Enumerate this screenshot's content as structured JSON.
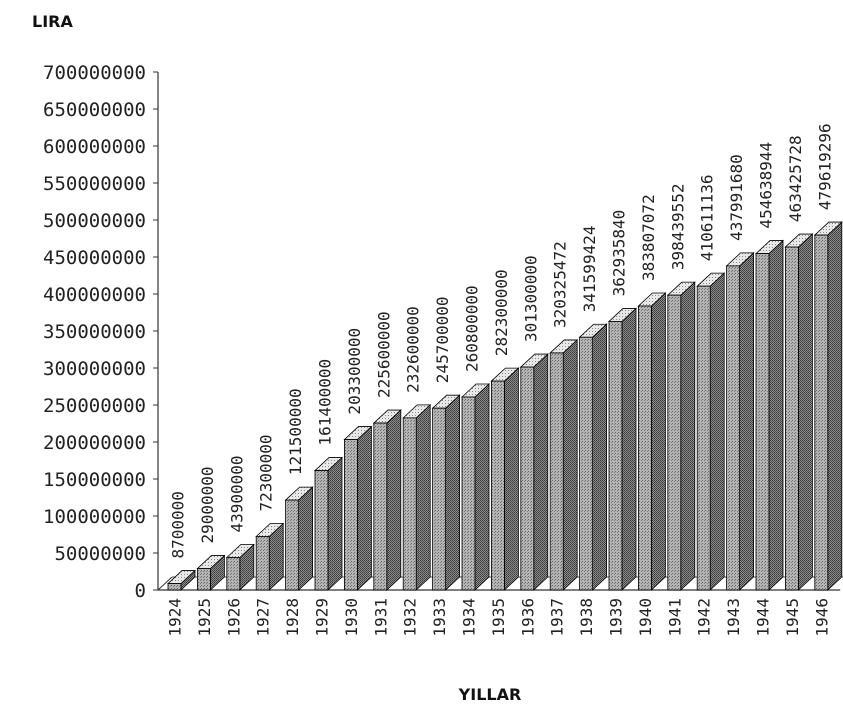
{
  "chart_data": {
    "type": "bar",
    "ylabel": "LIRA",
    "xlabel": "YILLAR",
    "ylim": [
      0,
      700000000
    ],
    "yticks": [
      "700000000",
      "650000000",
      "600000000",
      "550000000",
      "500000000",
      "450000000",
      "400000000",
      "350000000",
      "300000000",
      "250000000",
      "200000000",
      "150000000",
      "100000000",
      "50000000",
      "0"
    ],
    "categories": [
      "1924",
      "1925",
      "1926",
      "1927",
      "1928",
      "1929",
      "1930",
      "1931",
      "1932",
      "1933",
      "1934",
      "1935",
      "1936",
      "1937",
      "1938",
      "1939",
      "1940",
      "1941",
      "1942",
      "1943",
      "1944",
      "1945",
      "1946"
    ],
    "values": [
      8700000,
      29000000,
      43900000,
      72300000,
      121500000,
      161400000,
      203300000,
      225600000,
      232600000,
      245700000,
      260800000,
      282300000,
      301300000,
      320325472,
      341599424,
      362935840,
      383807072,
      398439552,
      410611136,
      437991680,
      454638944,
      463425728,
      479619296
    ],
    "data_labels": [
      "8700000",
      "29000000",
      "43900000",
      "72300000",
      "121500000",
      "161400000",
      "203300000",
      "225600000",
      "232600000",
      "245700000",
      "260800000",
      "282300000",
      "301300000",
      "320325472",
      "341599424",
      "362935840",
      "383807072",
      "398439552",
      "410611136",
      "437991680",
      "454638944",
      "463425728",
      "479619296"
    ],
    "grid": false,
    "legend": "none",
    "colors": {
      "front": "#a8a8a8",
      "side": "#6e6e6e",
      "top": "#d9d9d9",
      "edge": "#000000"
    }
  }
}
